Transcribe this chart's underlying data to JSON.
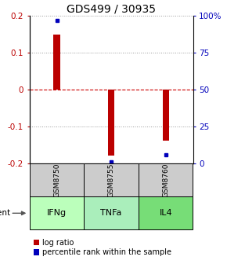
{
  "title": "GDS499 / 30935",
  "samples": [
    "GSM8750",
    "GSM8755",
    "GSM8760"
  ],
  "agents": [
    "IFNg",
    "TNFa",
    "IL4"
  ],
  "log_ratios": [
    0.15,
    -0.178,
    -0.138
  ],
  "percentile_ranks": [
    97,
    1,
    6
  ],
  "ylim_left": [
    -0.2,
    0.2
  ],
  "ylim_right": [
    0,
    100
  ],
  "yticks_left": [
    -0.2,
    -0.1,
    0,
    0.1,
    0.2
  ],
  "yticks_right": [
    0,
    25,
    50,
    75,
    100
  ],
  "ytick_labels_right": [
    "0",
    "25",
    "50",
    "75",
    "100%"
  ],
  "bar_color": "#bb0000",
  "dot_color": "#0000bb",
  "agent_colors": [
    "#bbffbb",
    "#aaeebb",
    "#77dd77"
  ],
  "sample_bg_color": "#cccccc",
  "zero_line_color": "#cc0000",
  "bar_width": 0.12,
  "title_fontsize": 10,
  "tick_fontsize": 7.5,
  "legend_fontsize": 7.0,
  "agent_label_fontsize": 8.0,
  "sample_label_fontsize": 6.5
}
